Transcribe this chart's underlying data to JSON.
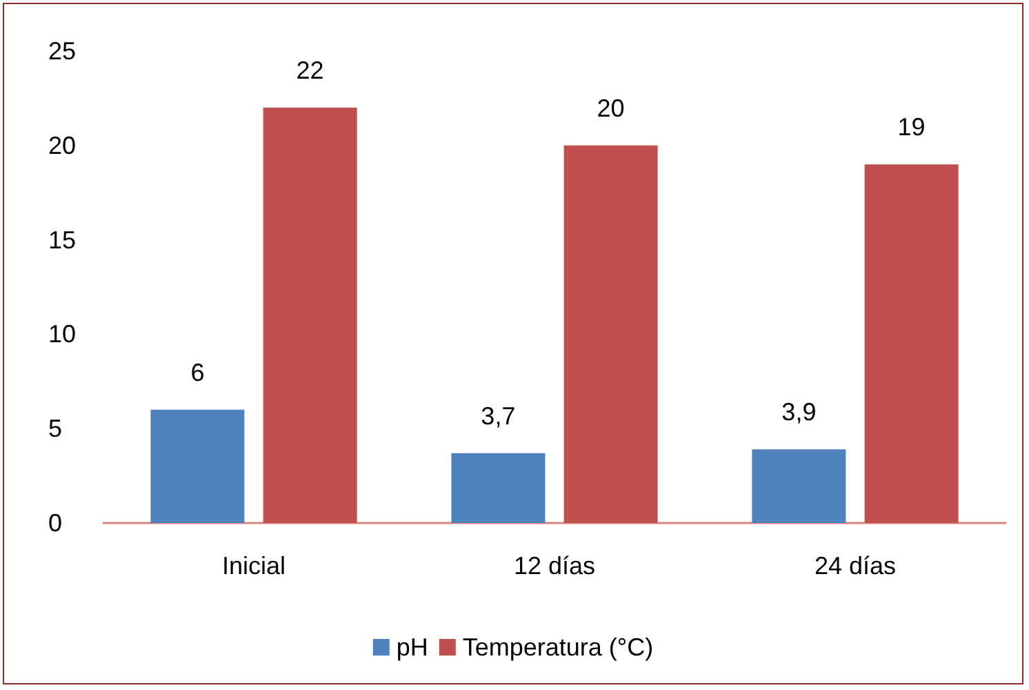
{
  "chart_data": {
    "type": "bar",
    "categories": [
      "Inicial",
      "12 días",
      "24 días"
    ],
    "series": [
      {
        "name": "pH",
        "color": "#4f81bd",
        "values": [
          6,
          3.7,
          3.9
        ],
        "value_labels": [
          "6",
          "3,7",
          "3,9"
        ]
      },
      {
        "name": "Temperatura (°C)",
        "color": "#c0504d",
        "values": [
          22,
          20,
          19
        ],
        "value_labels": [
          "22",
          "20",
          "19"
        ]
      }
    ],
    "ylim": [
      0,
      25
    ],
    "yticks": [
      0,
      5,
      10,
      15,
      20,
      25
    ],
    "grid": false,
    "legend": "bottom"
  }
}
